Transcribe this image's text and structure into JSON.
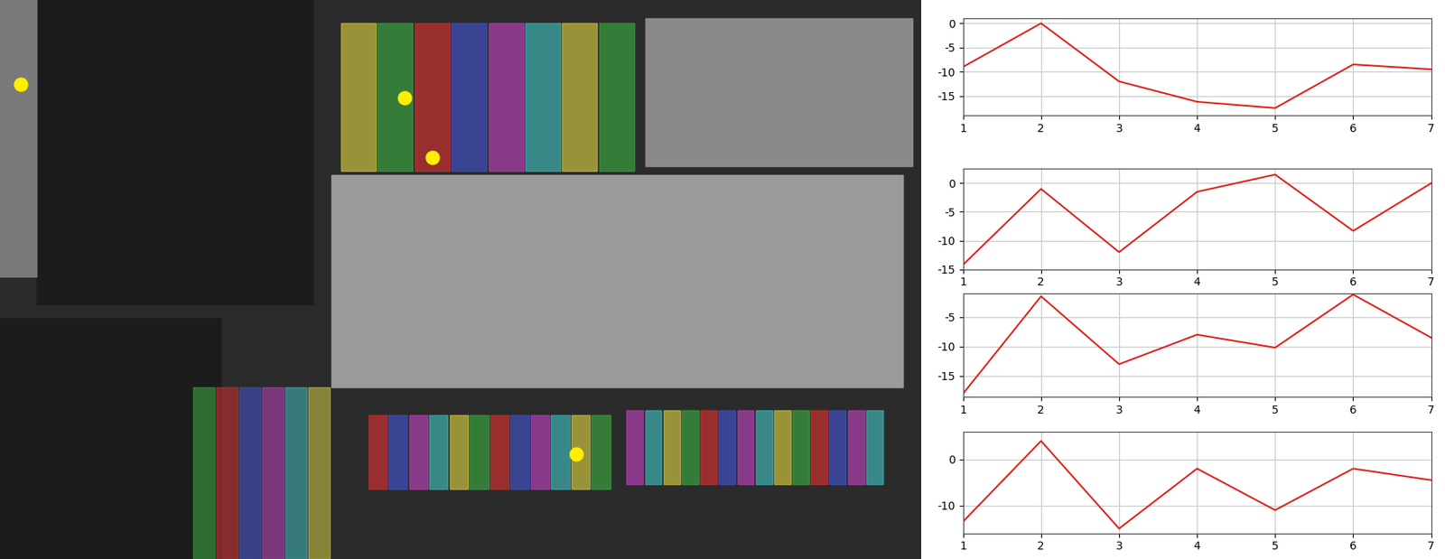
{
  "chart_data": [
    {
      "type": "line",
      "x": [
        1,
        2,
        3,
        4,
        5,
        6,
        7
      ],
      "values": [
        -9,
        0,
        -12,
        -16.2,
        -17.5,
        -8.5,
        -9.5
      ],
      "color": "#e0201b",
      "xlim": [
        1,
        7
      ],
      "xticks": [
        1,
        2,
        3,
        4,
        5,
        6,
        7
      ],
      "ylim": [
        -19,
        1
      ],
      "yticks": [
        {
          "value": -15,
          "label": "-15"
        },
        {
          "value": -10,
          "label": "-10"
        },
        {
          "value": -5,
          "label": "-5"
        },
        0
      ],
      "grid": true
    },
    {
      "type": "line",
      "x": [
        1,
        2,
        3,
        4,
        5,
        6,
        7
      ],
      "values": [
        -14.2,
        -1,
        -12,
        -1.5,
        1.5,
        -8.3,
        0
      ],
      "color": "#e0201b",
      "xlim": [
        1,
        7
      ],
      "xticks": [
        1,
        2,
        3,
        4,
        5,
        6,
        7
      ],
      "ylim": [
        -15,
        2.5
      ],
      "yticks": [
        {
          "value": -15,
          "label": "-15"
        },
        {
          "value": -10,
          "label": "-10"
        },
        {
          "value": -5,
          "label": "-5"
        },
        0
      ],
      "grid": true
    },
    {
      "type": "line",
      "x": [
        1,
        2,
        3,
        4,
        5,
        6,
        7
      ],
      "values": [
        -18,
        -1.5,
        -13,
        -8,
        -10.2,
        -1.2,
        -8.5
      ],
      "color": "#e0201b",
      "xlim": [
        1,
        7
      ],
      "xticks": [
        1,
        2,
        3,
        4,
        5,
        6,
        7
      ],
      "ylim": [
        -18.5,
        -1
      ],
      "yticks": [
        {
          "value": -15,
          "label": "-15"
        },
        {
          "value": -10,
          "label": "-10"
        },
        {
          "value": -5,
          "label": "-5"
        }
      ],
      "grid": true
    },
    {
      "type": "line",
      "x": [
        1,
        2,
        3,
        4,
        5,
        6,
        7
      ],
      "values": [
        -13.5,
        4,
        -15,
        -2,
        -11,
        -2,
        -4.5
      ],
      "color": "#e0201b",
      "xlim": [
        1,
        7
      ],
      "xticks": [
        1,
        2,
        3,
        4,
        5,
        6,
        7
      ],
      "ylim": [
        -16,
        6
      ],
      "yticks": [
        {
          "value": -10,
          "label": "-10"
        },
        0
      ],
      "grid": true
    }
  ]
}
